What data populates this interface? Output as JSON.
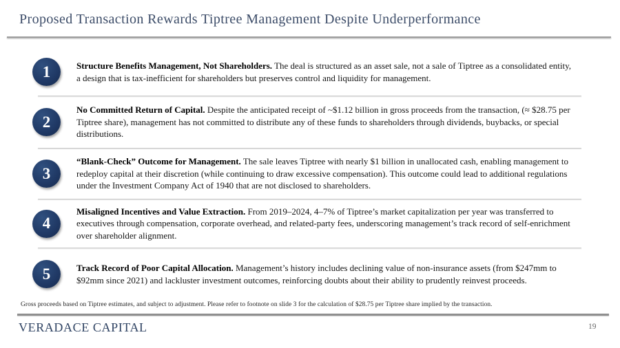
{
  "slide": {
    "title": "Proposed Transaction Rewards Tiptree Management Despite Underperformance",
    "points": [
      {
        "number": "1",
        "lead": "Structure Benefits Management, Not Shareholders.",
        "body": "The deal is structured as an asset sale, not a sale of Tiptree as a consolidated entity, a design that is tax-inefficient for shareholders but preserves control and liquidity for management."
      },
      {
        "number": "2",
        "lead": "No Committed Return of Capital.",
        "body": "Despite the anticipated receipt of ~$1.12 billion in gross proceeds from the transaction, (≈ $28.75 per Tiptree share), management has not committed to distribute any of these funds to shareholders through dividends, buybacks, or special distributions."
      },
      {
        "number": "3",
        "lead": "“Blank-Check” Outcome for Management.",
        "body": "The sale leaves Tiptree with nearly $1 billion in unallocated cash, enabling management to redeploy capital at their discretion (while continuing to draw excessive compensation). This outcome could lead to additional regulations under the Investment Company Act of 1940 that are not disclosed to shareholders."
      },
      {
        "number": "4",
        "lead": "Misaligned Incentives and Value Extraction.",
        "body": "From 2019–2024, 4–7% of Tiptree’s market capitalization per year was transferred to executives through compensation, corporate overhead, and related-party fees, underscoring management’s track record of self-enrichment over shareholder alignment."
      },
      {
        "number": "5",
        "lead": "Track Record of Poor Capital Allocation.",
        "body": "Management’s history includes declining value of non-insurance assets (from $247mm to $92mm since 2021) and lackluster investment outcomes, reinforcing doubts about their ability to prudently reinvest proceeds."
      }
    ],
    "footnote": "Gross proceeds based on Tiptree estimates, and subject to adjustment. Please refer to footnote on slide 3 for the calculation of $28.75 per Tiptree share implied by the transaction.",
    "footer": {
      "company": "VERADACE CAPITAL",
      "page_number": "19"
    },
    "colors": {
      "accent_navy": "#1f3864",
      "title_navy": "#3c4c68",
      "divider_gray": "#c9c9c9"
    }
  }
}
